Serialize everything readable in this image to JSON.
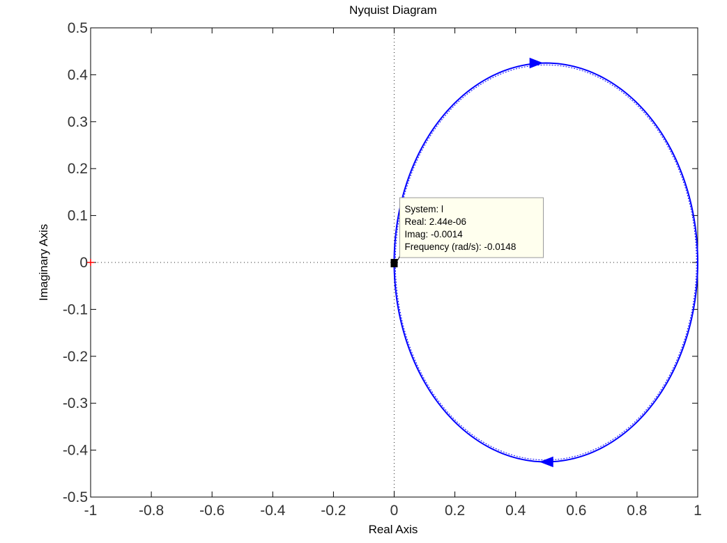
{
  "chart_data": {
    "type": "line",
    "title": "Nyquist Diagram",
    "xlabel": "Real Axis",
    "ylabel": "Imaginary Axis",
    "xlim": [
      -1,
      1
    ],
    "ylim": [
      -0.5,
      0.5
    ],
    "xticks": [
      -1,
      -0.8,
      -0.6,
      -0.4,
      -0.2,
      0,
      0.2,
      0.4,
      0.6,
      0.8,
      1
    ],
    "xtick_labels": [
      "-1",
      "-0.8",
      "-0.6",
      "-0.4",
      "-0.2",
      "0",
      "0.2",
      "0.4",
      "0.6",
      "0.8",
      "1"
    ],
    "yticks": [
      0.5,
      0.4,
      0.3,
      0.2,
      0.1,
      0,
      -0.1,
      -0.2,
      -0.3,
      -0.4,
      -0.5
    ],
    "ytick_labels": [
      "0.5",
      "0.4",
      "0.3",
      "0.2",
      "0.1",
      "0",
      "-0.1",
      "-0.2",
      "-0.3",
      "-0.4",
      "-0.5"
    ],
    "grid": false,
    "series": [
      {
        "color": "#0000ff",
        "curve": {
          "center_real": 0.5,
          "center_imag": 0,
          "radius_real": 0.5,
          "radius_imag": 0.425
        },
        "arrows": [
          {
            "real": 0.47,
            "imag": 0.425,
            "direction": "right"
          },
          {
            "real": 0.5,
            "imag": -0.425,
            "direction": "left"
          }
        ]
      }
    ],
    "critical_point": {
      "real": -1,
      "imag": 0,
      "marker": "+",
      "color": "#ff0000"
    },
    "datatip": {
      "point": {
        "real": 2.44e-06,
        "imag": -0.0014
      },
      "lines": [
        "System: l",
        "Real: 2.44e-06",
        "Imag: -0.0014",
        "Frequency (rad/s): -0.0148"
      ],
      "background": "#ffffee"
    }
  }
}
